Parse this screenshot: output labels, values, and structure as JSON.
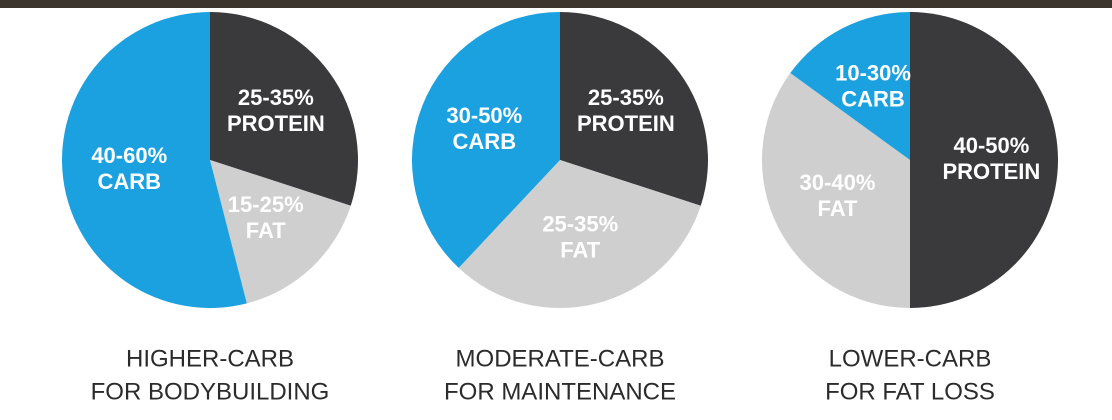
{
  "chart_data": [
    {
      "type": "pie",
      "title_lines": [
        "HIGHER-CARB",
        "FOR BODYBUILDING"
      ],
      "categories": [
        "PROTEIN",
        "FAT",
        "CARB"
      ],
      "values": [
        30,
        16,
        54
      ],
      "value_labels": [
        "25-35%",
        "15-25%",
        "40-60%"
      ],
      "colors": [
        "#3a3a3c",
        "#cfcfcf",
        "#1ba1df"
      ]
    },
    {
      "type": "pie",
      "title_lines": [
        "MODERATE-CARB",
        "FOR MAINTENANCE"
      ],
      "categories": [
        "PROTEIN",
        "FAT",
        "CARB"
      ],
      "values": [
        30,
        32,
        38
      ],
      "value_labels": [
        "25-35%",
        "25-35%",
        "30-50%"
      ],
      "colors": [
        "#3a3a3c",
        "#cfcfcf",
        "#1ba1df"
      ]
    },
    {
      "type": "pie",
      "title_lines": [
        "LOWER-CARB",
        "FOR FAT LOSS"
      ],
      "categories": [
        "PROTEIN",
        "FAT",
        "CARB"
      ],
      "values": [
        50,
        35,
        15
      ],
      "value_labels": [
        "40-50%",
        "30-40%",
        "10-30%"
      ],
      "colors": [
        "#3a3a3c",
        "#cfcfcf",
        "#1ba1df"
      ]
    }
  ]
}
